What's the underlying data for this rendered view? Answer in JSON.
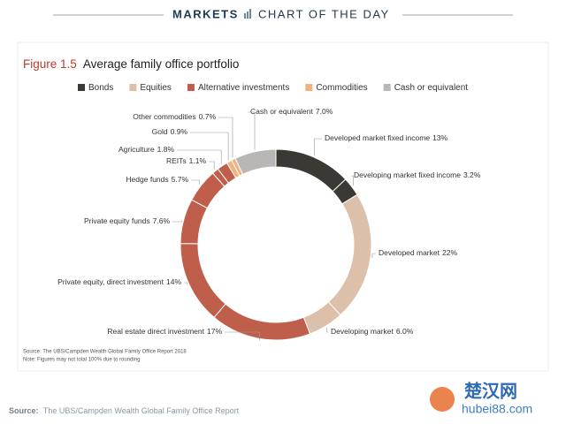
{
  "header": {
    "section": "MARKETS",
    "label": "CHART OF THE DAY"
  },
  "chart_data": {
    "type": "pie",
    "figure": "Figure 1.5",
    "title": "Average family office portfolio",
    "series": [
      {
        "name": "Bonds",
        "color": "#3b3934",
        "categories": [
          "Developed market fixed income",
          "Developing market fixed income"
        ],
        "values": [
          13,
          3.2
        ],
        "value_labels": [
          "13%",
          "3.2%"
        ]
      },
      {
        "name": "Equities",
        "color": "#dcc0a9",
        "categories": [
          "Developed market",
          "Developing market"
        ],
        "values": [
          22,
          6.0
        ],
        "value_labels": [
          "22%",
          "6.0%"
        ]
      },
      {
        "name": "Alternative investments",
        "color": "#bf5f4b",
        "categories": [
          "Real estate direct investment",
          "Private equity, direct investment",
          "Private equity funds",
          "Hedge funds",
          "REITs",
          "Agriculture"
        ],
        "values": [
          17,
          14,
          7.6,
          5.7,
          1.1,
          1.8
        ],
        "value_labels": [
          "17%",
          "14%",
          "7.6%",
          "5.7%",
          "1.1%",
          "1.8%"
        ]
      },
      {
        "name": "Commodities",
        "color": "#f3b27c",
        "categories": [
          "Gold",
          "Other commodities"
        ],
        "values": [
          0.9,
          0.7
        ],
        "value_labels": [
          "0.9%",
          "0.7%"
        ]
      },
      {
        "name": "Cash or equivalent",
        "color": "#b9b7b5",
        "categories": [
          "Cash or equivalent"
        ],
        "values": [
          7.0
        ],
        "value_labels": [
          "7.0%"
        ]
      }
    ],
    "notes": [
      "Source: The UBS/Campden Wealth Global Family Office Report 2018",
      "Note: Figures may not total 100% due to rounding"
    ]
  },
  "footer": {
    "source_label": "Source:",
    "source": "The UBS/Campden Wealth Global Family Office Report"
  },
  "watermark": {
    "name": "楚汉网",
    "url": "hubei88.com"
  }
}
